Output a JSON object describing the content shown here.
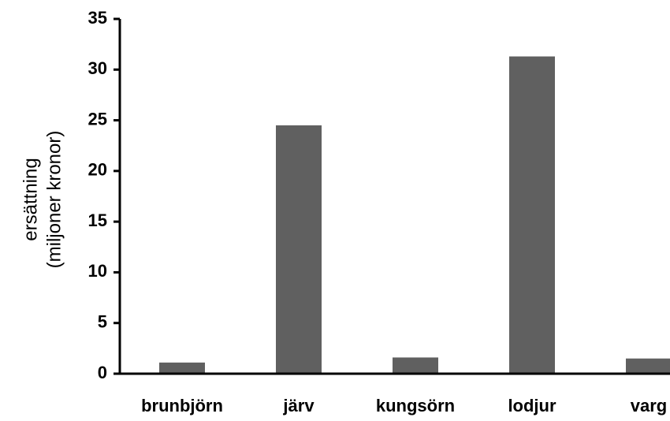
{
  "chart_data": {
    "type": "bar",
    "title": "",
    "xlabel": "",
    "ylabel_lines": [
      "ersättning",
      "(miljoner kronor)"
    ],
    "categories": [
      "brunbjörn",
      "järv",
      "kungsörn",
      "lodjur",
      "varg"
    ],
    "values": [
      1.1,
      24.5,
      1.6,
      31.3,
      1.5
    ],
    "ylim": [
      0,
      35
    ],
    "yticks": [
      "0",
      "5",
      "10",
      "15",
      "20",
      "25",
      "30",
      "35"
    ],
    "grid": false,
    "legend": "none",
    "bar_color": "#606060",
    "axis_color": "#000000"
  }
}
